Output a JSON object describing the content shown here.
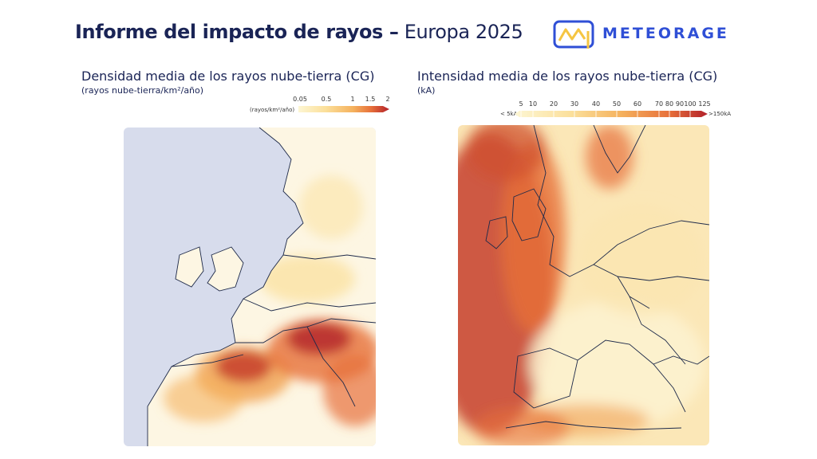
{
  "header": {
    "title_bold": "Informe del impacto de rayos –",
    "title_light": "Europa 2025",
    "logo_text": "METEORAGE",
    "logo_icon": "meteorage-logo-icon"
  },
  "left_panel": {
    "title": "Densidad media de los rayos nube-tierra (CG)",
    "subtitle": "(rayos nube-tierra/km²/año)",
    "legend_units": "(rayos/km²/año)",
    "legend_ticks": [
      "0.05",
      "0.5",
      "1",
      "1.5",
      "2"
    ],
    "colors": [
      "#fdf6d3",
      "#fbdf9a",
      "#f5b25e",
      "#e7703a",
      "#b2202a"
    ]
  },
  "right_panel": {
    "title": "Intensidad media de los rayos nube-tierra (CG)",
    "subtitle": "(kA)",
    "legend_ticks": [
      "5",
      "10",
      "20",
      "30",
      "40",
      "50",
      "60",
      "70",
      "80",
      "90",
      "100",
      "125"
    ],
    "legend_min_label": "< 5kA",
    "legend_max_label": ">150kA",
    "colors": [
      "#fdf6d3",
      "#fbdf9a",
      "#f5b25e",
      "#e7703a",
      "#b2202a"
    ]
  },
  "map_colors": {
    "sea": "#d7dcec",
    "land_low": "#fdf6e3",
    "border": "#1e2a4a"
  }
}
